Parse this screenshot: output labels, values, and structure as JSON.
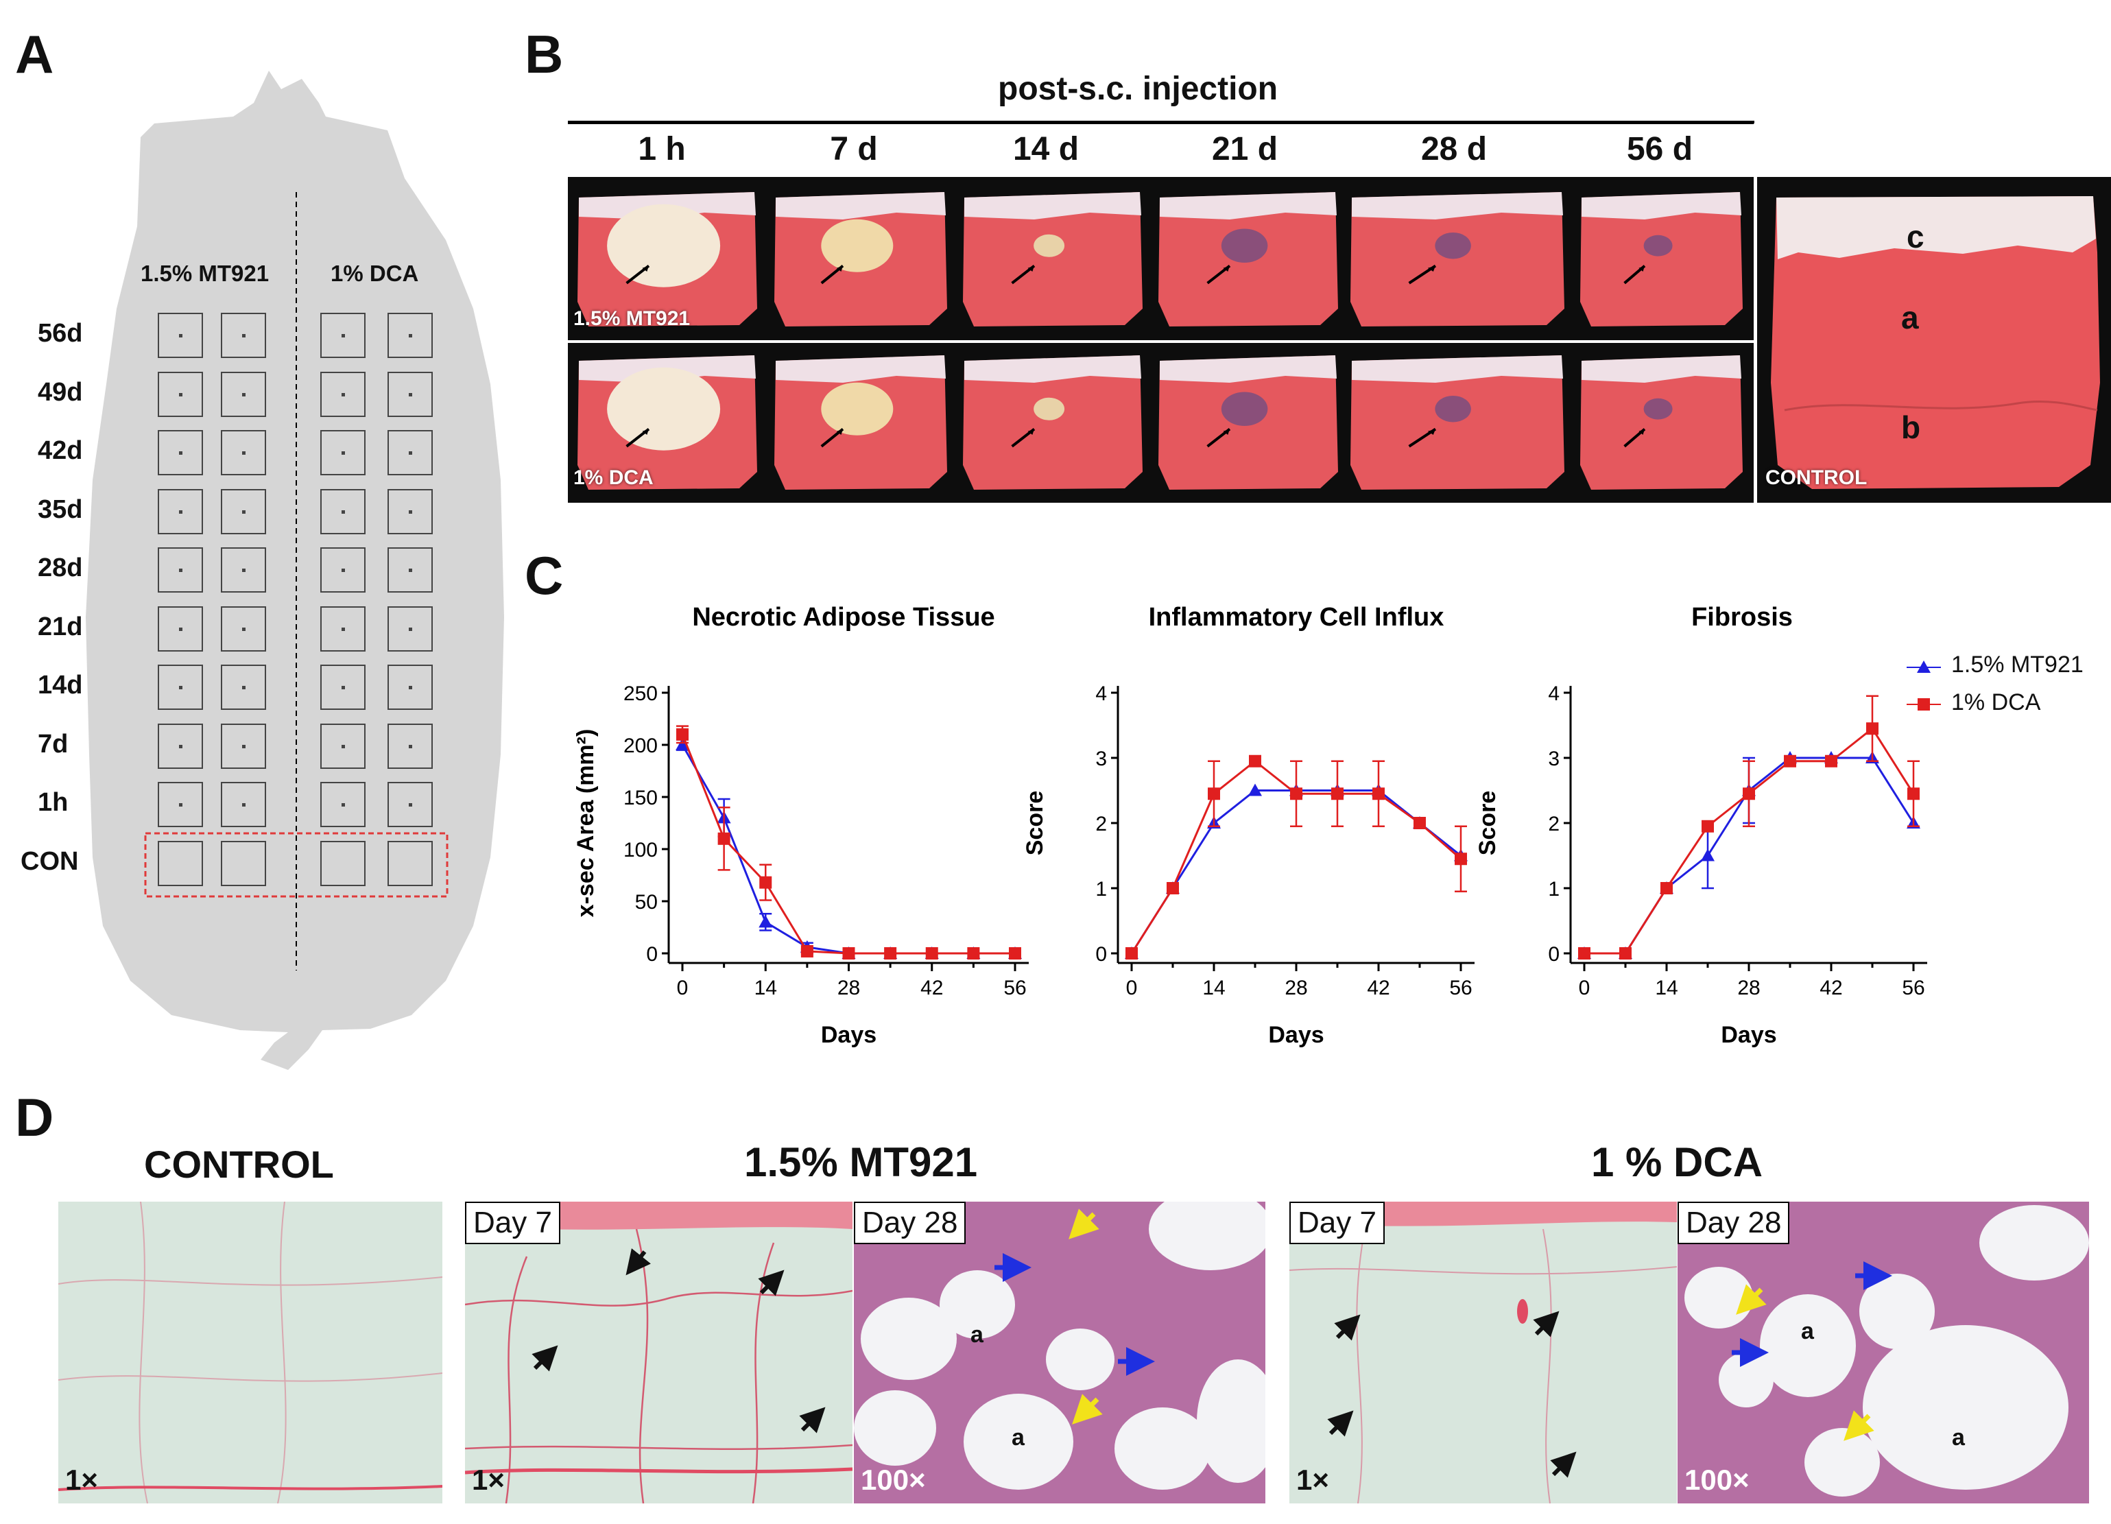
{
  "panel_letters": {
    "a": "A",
    "b": "B",
    "c": "C",
    "d": "D"
  },
  "panel_a": {
    "columns": [
      "1.5% MT921",
      "1% DCA"
    ],
    "rows": [
      "56d",
      "49d",
      "42d",
      "35d",
      "28d",
      "21d",
      "14d",
      "7d",
      "1h",
      "CON"
    ]
  },
  "panel_b": {
    "header": "post-s.c. injection",
    "timepoints": [
      "1 h",
      "7 d",
      "14 d",
      "21 d",
      "28 d",
      "56 d"
    ],
    "row_labels": [
      "1.5% MT921",
      "1% DCA"
    ],
    "control_label": "CONTROL",
    "control_layers": [
      "c",
      "a",
      "b"
    ]
  },
  "panel_c": {
    "legend": [
      {
        "name": "1.5% MT921",
        "color": "#1f1fe0",
        "marker": "triangle"
      },
      {
        "name": "1% DCA",
        "color": "#e01f1f",
        "marker": "square"
      }
    ],
    "xlabel": "Days"
  },
  "chart_data": [
    {
      "type": "line",
      "title": "Necrotic Adipose Tissue",
      "xlabel": "Days",
      "ylabel": "x-sec Area  (mm²)",
      "x": [
        0,
        7,
        14,
        21,
        28,
        35,
        42,
        49,
        56
      ],
      "xticks": [
        0,
        14,
        28,
        42,
        56
      ],
      "yticks": [
        0,
        50,
        100,
        150,
        200,
        250
      ],
      "ylim": [
        0,
        250
      ],
      "series": [
        {
          "name": "1.5% MT921",
          "values": [
            200,
            130,
            30,
            6,
            0,
            0,
            0,
            0,
            0
          ],
          "err": [
            5,
            18,
            8,
            4,
            0,
            0,
            0,
            0,
            0
          ]
        },
        {
          "name": "1% DCA",
          "values": [
            210,
            110,
            68,
            2,
            0,
            0,
            0,
            0,
            0
          ],
          "err": [
            8,
            30,
            17,
            2,
            0,
            0,
            0,
            0,
            0
          ]
        }
      ]
    },
    {
      "type": "line",
      "title": "Inflammatory Cell Influx",
      "xlabel": "Days",
      "ylabel": "Score",
      "x": [
        0,
        7,
        14,
        21,
        28,
        35,
        42,
        49,
        56
      ],
      "xticks": [
        0,
        14,
        28,
        42,
        56
      ],
      "yticks": [
        0,
        1,
        2,
        3,
        4
      ],
      "ylim": [
        0,
        4
      ],
      "series": [
        {
          "name": "1.5% MT921",
          "values": [
            0,
            1,
            2,
            2.5,
            2.5,
            2.5,
            2.5,
            2,
            1.5
          ],
          "err": [
            0,
            0,
            0,
            0,
            0,
            0,
            0,
            0,
            0
          ]
        },
        {
          "name": "1% DCA",
          "values": [
            0,
            1,
            2.45,
            2.95,
            2.45,
            2.45,
            2.45,
            2,
            1.45
          ],
          "err": [
            0,
            0,
            0.5,
            0,
            0.5,
            0.5,
            0.5,
            0,
            0.5
          ]
        }
      ]
    },
    {
      "type": "line",
      "title": "Fibrosis",
      "xlabel": "Days",
      "ylabel": "Score",
      "x": [
        0,
        7,
        14,
        21,
        28,
        35,
        42,
        49,
        56
      ],
      "xticks": [
        0,
        14,
        28,
        42,
        56
      ],
      "yticks": [
        0,
        1,
        2,
        3,
        4
      ],
      "ylim": [
        0,
        4
      ],
      "series": [
        {
          "name": "1.5% MT921",
          "values": [
            0,
            0,
            1,
            1.5,
            2.5,
            3,
            3,
            3,
            2
          ],
          "err": [
            0,
            0,
            0,
            0.5,
            0.5,
            0,
            0,
            0,
            0
          ]
        },
        {
          "name": "1% DCA",
          "values": [
            0,
            0,
            1,
            1.95,
            2.45,
            2.95,
            2.95,
            3.45,
            2.45
          ],
          "err": [
            0,
            0,
            0,
            0,
            0.5,
            0,
            0,
            0.5,
            0.5
          ]
        }
      ]
    }
  ],
  "panel_d": {
    "control_title": "CONTROL",
    "mt_title": "1.5% MT921",
    "dca_title": "1 % DCA",
    "day7": "Day 7",
    "day28": "Day 28",
    "mag_1x": "1×",
    "mag_100x": "100×",
    "adipocyte": "a"
  }
}
